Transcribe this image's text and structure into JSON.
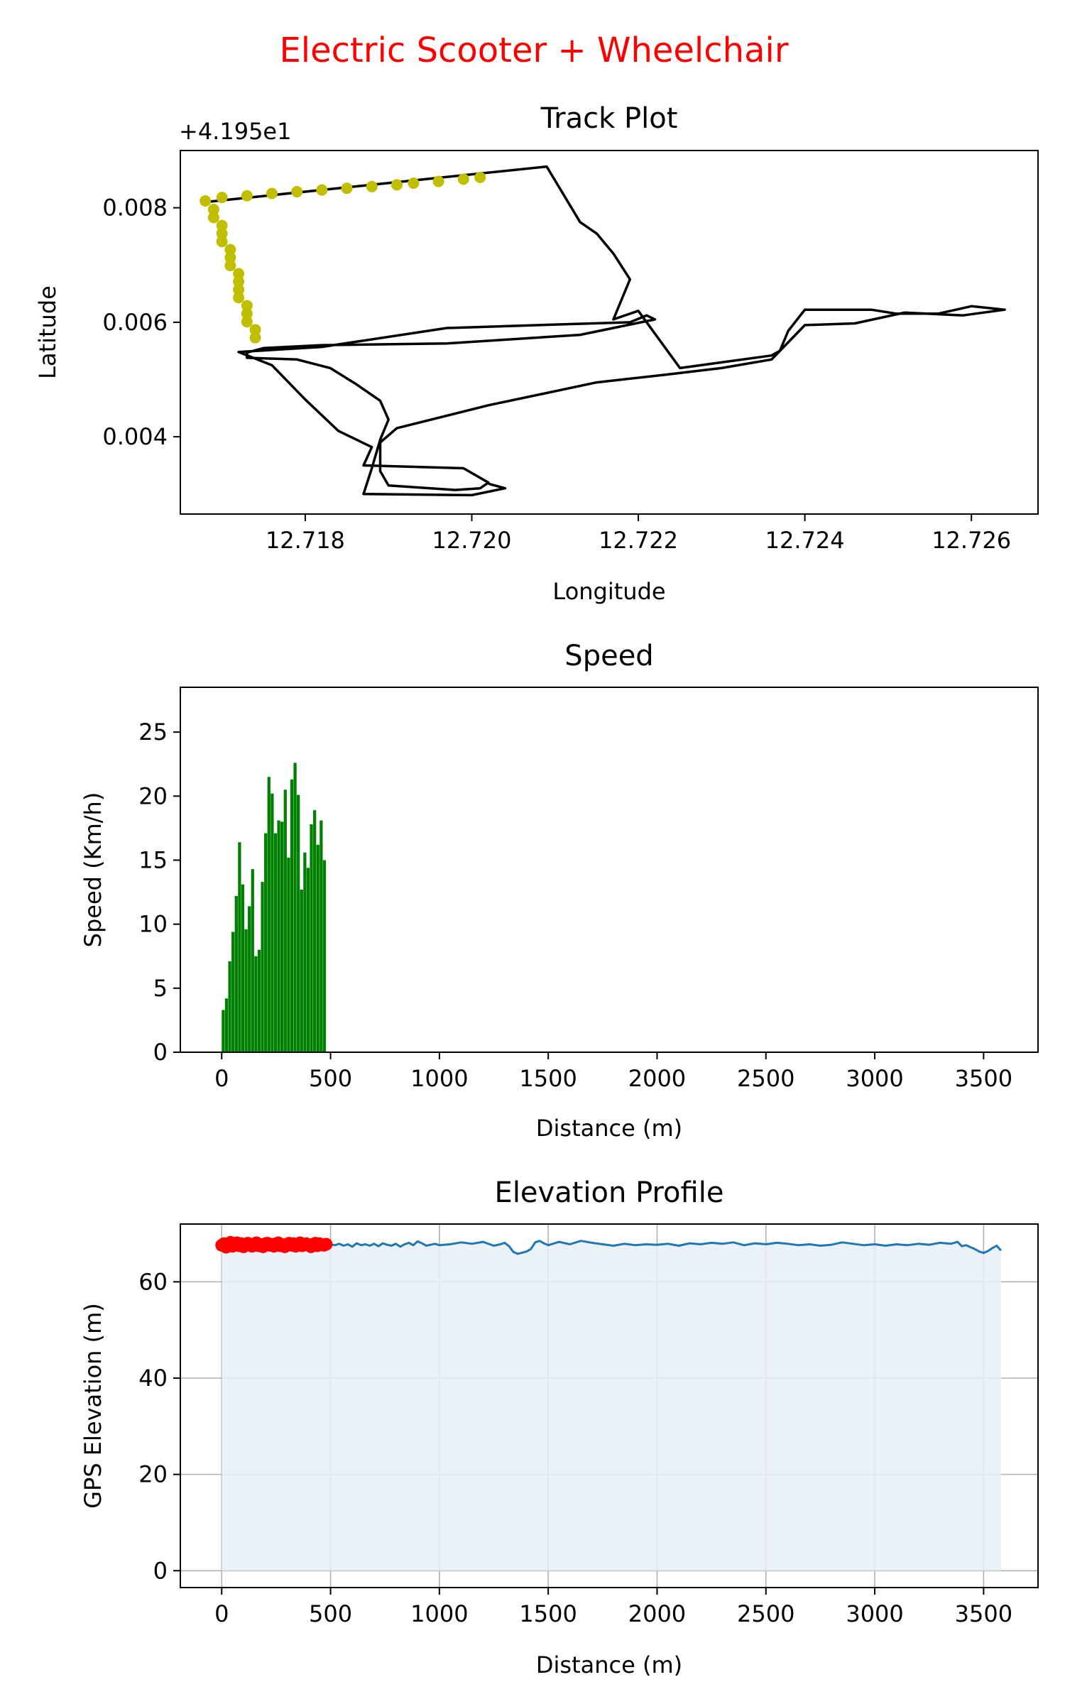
{
  "figure": {
    "suptitle": "Electric Scooter + Wheelchair",
    "suptitle_color": "#ff0000"
  },
  "chart_data": [
    {
      "type": "line",
      "title": "Track Plot",
      "xlabel": "Longitude",
      "ylabel": "Latitude",
      "offset_text": "+4.195e1",
      "xlim": [
        12.7165,
        12.7268
      ],
      "ylim": [
        0.00265,
        0.009
      ],
      "xticks": [
        "12.718",
        "12.720",
        "12.722",
        "12.724",
        "12.726"
      ],
      "xtick_values": [
        12.718,
        12.72,
        12.722,
        12.724,
        12.726
      ],
      "yticks": [
        "0.004",
        "0.006",
        "0.008"
      ],
      "ytick_values": [
        0.004,
        0.006,
        0.008
      ],
      "track_color": "#000000",
      "highlight_color": "#bfbf00",
      "track": [
        [
          12.7168,
          0.0081
        ],
        [
          12.7209,
          0.00872
        ],
        [
          12.7213,
          0.00775
        ],
        [
          12.7215,
          0.00755
        ],
        [
          12.7217,
          0.0072
        ],
        [
          12.7219,
          0.00675
        ],
        [
          12.7217,
          0.00605
        ],
        [
          12.722,
          0.0062
        ],
        [
          12.7225,
          0.0052
        ],
        [
          12.7236,
          0.00542
        ],
        [
          12.7237,
          0.0055
        ],
        [
          12.7238,
          0.00585
        ],
        [
          12.724,
          0.00622
        ],
        [
          12.7248,
          0.00622
        ],
        [
          12.7251,
          0.00615
        ],
        [
          12.7256,
          0.00615
        ],
        [
          12.726,
          0.00628
        ],
        [
          12.7264,
          0.00622
        ],
        [
          12.7259,
          0.00612
        ],
        [
          12.7252,
          0.00617
        ],
        [
          12.7246,
          0.00598
        ],
        [
          12.724,
          0.00595
        ],
        [
          12.7238,
          0.00565
        ],
        [
          12.7236,
          0.00535
        ],
        [
          12.723,
          0.0052
        ],
        [
          12.7223,
          0.00508
        ],
        [
          12.7215,
          0.00495
        ],
        [
          12.7202,
          0.00455
        ],
        [
          12.7191,
          0.00415
        ],
        [
          12.7189,
          0.0039
        ],
        [
          12.7189,
          0.0034
        ],
        [
          12.719,
          0.00315
        ],
        [
          12.7198,
          0.00307
        ],
        [
          12.7201,
          0.0031
        ],
        [
          12.7202,
          0.0032
        ],
        [
          12.7199,
          0.00345
        ],
        [
          12.7187,
          0.0035
        ],
        [
          12.7188,
          0.00382
        ],
        [
          12.7184,
          0.0041
        ],
        [
          12.718,
          0.00465
        ],
        [
          12.7176,
          0.00525
        ],
        [
          12.7172,
          0.00548
        ],
        [
          12.7182,
          0.00557
        ],
        [
          12.7197,
          0.0059
        ],
        [
          12.721,
          0.00596
        ],
        [
          12.7219,
          0.006
        ],
        [
          12.7221,
          0.00612
        ],
        [
          12.7222,
          0.00605
        ],
        [
          12.7213,
          0.00578
        ],
        [
          12.7197,
          0.00563
        ],
        [
          12.7182,
          0.0056
        ],
        [
          12.7175,
          0.00555
        ],
        [
          12.7173,
          0.00547
        ],
        [
          12.7173,
          0.00538
        ],
        [
          12.7179,
          0.00535
        ],
        [
          12.7183,
          0.0052
        ],
        [
          12.7186,
          0.00493
        ],
        [
          12.7189,
          0.00463
        ],
        [
          12.719,
          0.0043
        ],
        [
          12.7189,
          0.00395
        ],
        [
          12.7188,
          0.00345
        ],
        [
          12.7187,
          0.003
        ],
        [
          12.72,
          0.00298
        ],
        [
          12.7204,
          0.0031
        ],
        [
          12.7202,
          0.00318
        ]
      ],
      "highlight_points": [
        [
          12.7168,
          0.00812
        ],
        [
          12.7169,
          0.00797
        ],
        [
          12.7169,
          0.00783
        ],
        [
          12.717,
          0.00769
        ],
        [
          12.717,
          0.00755
        ],
        [
          12.717,
          0.00741
        ],
        [
          12.7171,
          0.00727
        ],
        [
          12.7171,
          0.00713
        ],
        [
          12.7171,
          0.00699
        ],
        [
          12.7172,
          0.00685
        ],
        [
          12.7172,
          0.00671
        ],
        [
          12.7172,
          0.00657
        ],
        [
          12.7172,
          0.00643
        ],
        [
          12.7173,
          0.00629
        ],
        [
          12.7173,
          0.00615
        ],
        [
          12.7173,
          0.00601
        ],
        [
          12.7174,
          0.00587
        ],
        [
          12.7174,
          0.00573
        ],
        [
          12.717,
          0.00818
        ],
        [
          12.7173,
          0.00821
        ],
        [
          12.7176,
          0.00825
        ],
        [
          12.7179,
          0.00828
        ],
        [
          12.7182,
          0.00831
        ],
        [
          12.7185,
          0.00834
        ],
        [
          12.7188,
          0.00837
        ],
        [
          12.7191,
          0.0084
        ],
        [
          12.7193,
          0.00843
        ],
        [
          12.7196,
          0.00846
        ],
        [
          12.7199,
          0.0085
        ],
        [
          12.7201,
          0.00853
        ]
      ]
    },
    {
      "type": "bar",
      "title": "Speed",
      "xlabel": "Distance (m)",
      "ylabel": "Speed (Km/h)",
      "xlim": [
        -190,
        3750
      ],
      "ylim": [
        0,
        28.5
      ],
      "xticks": [
        "0",
        "500",
        "1000",
        "1500",
        "2000",
        "2500",
        "3000",
        "3500"
      ],
      "xtick_values": [
        0,
        500,
        1000,
        1500,
        2000,
        2500,
        3000,
        3500
      ],
      "yticks": [
        "0",
        "5",
        "10",
        "15",
        "20",
        "25"
      ],
      "ytick_values": [
        0,
        5,
        10,
        15,
        20,
        25
      ],
      "bar_color": "#008000",
      "bar_width": 12,
      "x": [
        0,
        15,
        30,
        45,
        60,
        75,
        90,
        105,
        120,
        135,
        150,
        165,
        180,
        195,
        210,
        225,
        240,
        255,
        270,
        285,
        300,
        315,
        330,
        345,
        360,
        375,
        390,
        405,
        420,
        435,
        450,
        465
      ],
      "values": [
        3.3,
        4.2,
        7.1,
        9.4,
        12.2,
        16.4,
        13.1,
        9.6,
        11.4,
        14.3,
        7.5,
        8.0,
        13.3,
        17.1,
        21.5,
        20.2,
        17.1,
        18.1,
        18.0,
        20.5,
        15.2,
        21.3,
        22.6,
        20.1,
        12.7,
        15.6,
        14.4,
        17.8,
        18.9,
        16.2,
        18.1,
        15.0
      ]
    },
    {
      "type": "area",
      "title": "Elevation Profile",
      "xlabel": "Distance (m)",
      "ylabel": "GPS Elevation (m)",
      "xlim": [
        -190,
        3750
      ],
      "ylim": [
        -3.5,
        72
      ],
      "grid": true,
      "xticks": [
        "0",
        "500",
        "1000",
        "1500",
        "2000",
        "2500",
        "3000",
        "3500"
      ],
      "xtick_values": [
        0,
        500,
        1000,
        1500,
        2000,
        2500,
        3000,
        3500
      ],
      "yticks": [
        "0",
        "20",
        "40",
        "60"
      ],
      "ytick_values": [
        0,
        20,
        40,
        60
      ],
      "line_color": "#1f77b4",
      "fill_color": "#e6eef6",
      "highlight_color": "#ff0000",
      "x": [
        0,
        20,
        40,
        60,
        80,
        100,
        120,
        140,
        160,
        180,
        200,
        220,
        240,
        260,
        280,
        300,
        320,
        340,
        360,
        380,
        400,
        420,
        440,
        460,
        480,
        500,
        520,
        540,
        560,
        580,
        600,
        620,
        640,
        660,
        680,
        700,
        720,
        740,
        760,
        780,
        800,
        820,
        840,
        860,
        880,
        900,
        920,
        940,
        960,
        980,
        1000,
        1050,
        1100,
        1150,
        1200,
        1250,
        1280,
        1300,
        1320,
        1340,
        1360,
        1400,
        1420,
        1440,
        1460,
        1480,
        1500,
        1550,
        1600,
        1650,
        1700,
        1750,
        1800,
        1850,
        1900,
        1950,
        2000,
        2050,
        2100,
        2150,
        2200,
        2250,
        2300,
        2350,
        2400,
        2450,
        2500,
        2550,
        2600,
        2650,
        2700,
        2750,
        2800,
        2850,
        2900,
        2950,
        3000,
        3050,
        3100,
        3150,
        3200,
        3250,
        3300,
        3350,
        3380,
        3400,
        3420,
        3440,
        3460,
        3480,
        3500,
        3520,
        3540,
        3560,
        3580
      ],
      "values": [
        67.6,
        67.9,
        67.3,
        68.1,
        67.5,
        67.8,
        67.4,
        68.0,
        67.6,
        67.9,
        67.5,
        67.8,
        67.4,
        68.0,
        67.7,
        67.5,
        67.9,
        67.4,
        67.8,
        67.6,
        68.0,
        67.5,
        67.7,
        67.9,
        67.4,
        67.8,
        67.6,
        67.9,
        67.5,
        67.8,
        67.3,
        68.0,
        67.6,
        67.8,
        67.5,
        67.9,
        67.4,
        68.0,
        67.7,
        67.5,
        67.9,
        67.3,
        67.8,
        68.1,
        67.6,
        68.4,
        68.0,
        67.5,
        67.7,
        67.9,
        67.6,
        67.8,
        68.2,
        67.9,
        68.3,
        67.5,
        67.8,
        68.1,
        67.4,
        66.2,
        65.8,
        66.3,
        66.8,
        68.2,
        68.5,
        68.0,
        67.6,
        68.3,
        67.8,
        68.5,
        68.1,
        67.8,
        67.5,
        67.9,
        67.6,
        67.8,
        67.7,
        67.9,
        67.5,
        68.0,
        67.8,
        68.1,
        67.9,
        68.2,
        67.6,
        68.0,
        67.8,
        68.1,
        67.9,
        67.6,
        67.8,
        67.5,
        67.7,
        68.2,
        67.9,
        67.6,
        67.8,
        67.5,
        67.8,
        67.6,
        67.9,
        67.7,
        68.1,
        67.9,
        68.3,
        67.4,
        67.6,
        67.2,
        66.8,
        66.3,
        66.0,
        66.4,
        67.0,
        67.5,
        66.5
      ],
      "highlight_x": [
        0,
        10,
        20,
        30,
        40,
        50,
        60,
        70,
        80,
        90,
        100,
        110,
        120,
        130,
        140,
        150,
        160,
        170,
        180,
        190,
        200,
        210,
        220,
        230,
        240,
        250,
        260,
        270,
        280,
        290,
        300,
        310,
        320,
        330,
        340,
        350,
        360,
        370,
        380,
        390,
        400,
        410,
        420,
        430,
        440,
        450,
        460,
        470,
        480
      ],
      "highlight_values": [
        67.6,
        67.9,
        67.2,
        67.8,
        68.2,
        67.4,
        67.7,
        68.1,
        67.5,
        67.9,
        67.3,
        67.8,
        68.0,
        67.6,
        67.4,
        67.9,
        68.1,
        67.5,
        67.7,
        67.3,
        67.9,
        68.0,
        67.6,
        67.8,
        67.4,
        67.9,
        68.1,
        67.5,
        67.7,
        67.3,
        67.8,
        68.0,
        67.6,
        67.9,
        67.4,
        67.8,
        68.1,
        67.5,
        67.7,
        67.9,
        67.6,
        67.3,
        67.8,
        68.0,
        67.5,
        67.9,
        67.7,
        67.6,
        67.8
      ]
    }
  ]
}
